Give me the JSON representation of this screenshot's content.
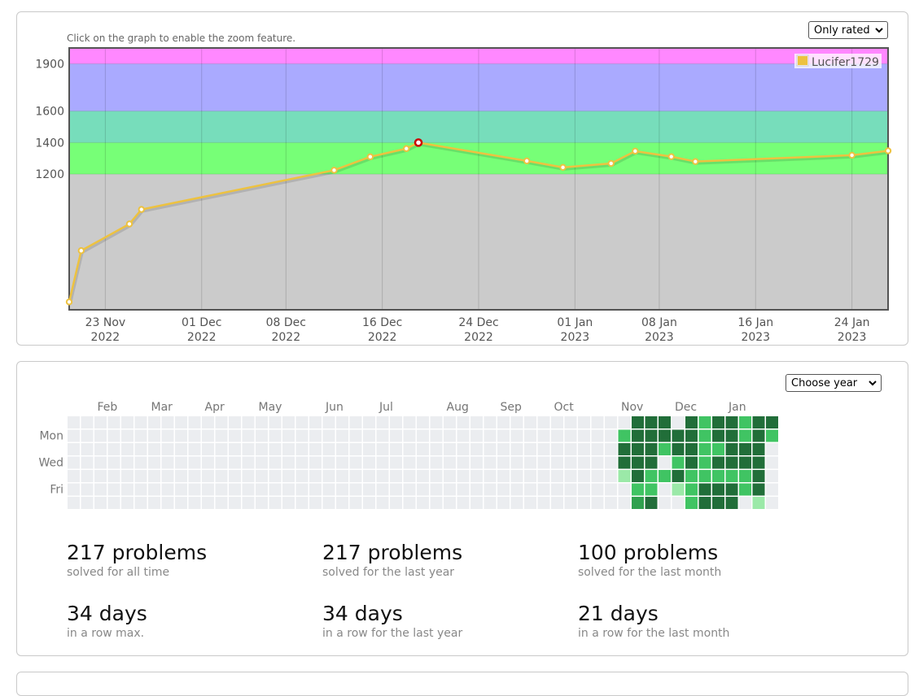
{
  "rating_panel": {
    "hint": "Click on the graph to enable the zoom feature.",
    "select_value": "Only rated"
  },
  "chart_data": {
    "type": "line",
    "series": [
      {
        "name": "Lucifer1729",
        "color": "#edc240",
        "points": [
          {
            "x": "2022-11-20",
            "y": 390
          },
          {
            "x": "2022-11-21",
            "y": 715
          },
          {
            "x": "2022-11-25",
            "y": 884
          },
          {
            "x": "2022-11-26",
            "y": 976
          },
          {
            "x": "2022-12-12",
            "y": 1225
          },
          {
            "x": "2022-12-15",
            "y": 1310
          },
          {
            "x": "2022-12-18",
            "y": 1362
          },
          {
            "x": "2022-12-19",
            "y": 1400,
            "highlight": true
          },
          {
            "x": "2022-12-28",
            "y": 1284
          },
          {
            "x": "2022-12-31",
            "y": 1243
          },
          {
            "x": "2023-01-04",
            "y": 1268
          },
          {
            "x": "2023-01-06",
            "y": 1346
          },
          {
            "x": "2023-01-09",
            "y": 1311
          },
          {
            "x": "2023-01-11",
            "y": 1280
          },
          {
            "x": "2023-01-24",
            "y": 1320
          },
          {
            "x": "2023-01-27",
            "y": 1348
          }
        ]
      }
    ],
    "x_ticks": [
      {
        "date": "2022-11-23",
        "label1": "23 Nov",
        "label2": "2022"
      },
      {
        "date": "2022-12-01",
        "label1": "01 Dec",
        "label2": "2022"
      },
      {
        "date": "2022-12-08",
        "label1": "08 Dec",
        "label2": "2022"
      },
      {
        "date": "2022-12-16",
        "label1": "16 Dec",
        "label2": "2022"
      },
      {
        "date": "2022-12-24",
        "label1": "24 Dec",
        "label2": "2022"
      },
      {
        "date": "2023-01-01",
        "label1": "01 Jan",
        "label2": "2023"
      },
      {
        "date": "2023-01-08",
        "label1": "08 Jan",
        "label2": "2023"
      },
      {
        "date": "2023-01-16",
        "label1": "16 Jan",
        "label2": "2023"
      },
      {
        "date": "2023-01-24",
        "label1": "24 Jan",
        "label2": "2023"
      }
    ],
    "y_ticks": [
      1200,
      1400,
      1600,
      1900
    ],
    "xlim": [
      "2022-11-20",
      "2023-01-27"
    ],
    "ylim": [
      340,
      2000
    ],
    "bands": [
      {
        "from": 340,
        "to": 1200,
        "color": "#cbcbcb"
      },
      {
        "from": 1200,
        "to": 1400,
        "color": "#77ff77"
      },
      {
        "from": 1400,
        "to": 1600,
        "color": "#77ddbb"
      },
      {
        "from": 1600,
        "to": 1900,
        "color": "#aaaaff"
      },
      {
        "from": 1900,
        "to": 2000,
        "color": "#ff88ff"
      }
    ],
    "legend_position": "top-right",
    "grid": true
  },
  "activity": {
    "select_value": "Choose year",
    "months": [
      {
        "label": "Feb",
        "week": 1
      },
      {
        "label": "Mar",
        "week": 5
      },
      {
        "label": "Apr",
        "week": 9
      },
      {
        "label": "May",
        "week": 13
      },
      {
        "label": "Jun",
        "week": 18
      },
      {
        "label": "Jul",
        "week": 22
      },
      {
        "label": "Aug",
        "week": 27
      },
      {
        "label": "Sep",
        "week": 31
      },
      {
        "label": "Oct",
        "week": 35
      },
      {
        "label": "Nov",
        "week": 40
      },
      {
        "label": "Dec",
        "week": 44
      },
      {
        "label": "Jan",
        "week": 48
      }
    ],
    "day_labels": [
      {
        "label": "Mon",
        "row": 1
      },
      {
        "label": "Wed",
        "row": 3
      },
      {
        "label": "Fri",
        "row": 5
      }
    ],
    "weeks_total": 53,
    "colors": {
      "0": "#ebedf0",
      "1": "#9be9a8",
      "2": "#40c463",
      "3": "#30a14e",
      "4": "#216e39"
    },
    "active_weeks": [
      [
        0,
        2,
        4,
        4,
        1,
        0,
        0
      ],
      [
        4,
        4,
        4,
        4,
        4,
        2,
        3
      ],
      [
        4,
        4,
        4,
        4,
        2,
        2,
        4
      ],
      [
        4,
        4,
        2,
        0,
        2,
        0,
        0
      ],
      [
        0,
        4,
        4,
        2,
        4,
        1,
        0
      ],
      [
        4,
        4,
        4,
        4,
        2,
        2,
        2
      ],
      [
        2,
        2,
        2,
        2,
        2,
        4,
        4
      ],
      [
        4,
        4,
        2,
        4,
        2,
        4,
        4
      ],
      [
        4,
        4,
        4,
        4,
        2,
        4,
        4
      ],
      [
        2,
        2,
        4,
        4,
        2,
        2,
        0
      ],
      [
        4,
        4,
        4,
        4,
        4,
        4,
        1
      ],
      [
        4,
        2,
        0,
        0,
        0,
        0,
        0
      ]
    ],
    "stats": [
      {
        "big": "217 problems",
        "small": "solved for all time"
      },
      {
        "big": "217 problems",
        "small": "solved for the last year"
      },
      {
        "big": "100 problems",
        "small": "solved for the last month"
      },
      {
        "big": "34 days",
        "small": "in a row max."
      },
      {
        "big": "34 days",
        "small": "in a row for the last year"
      },
      {
        "big": "21 days",
        "small": "in a row for the last month"
      }
    ]
  }
}
